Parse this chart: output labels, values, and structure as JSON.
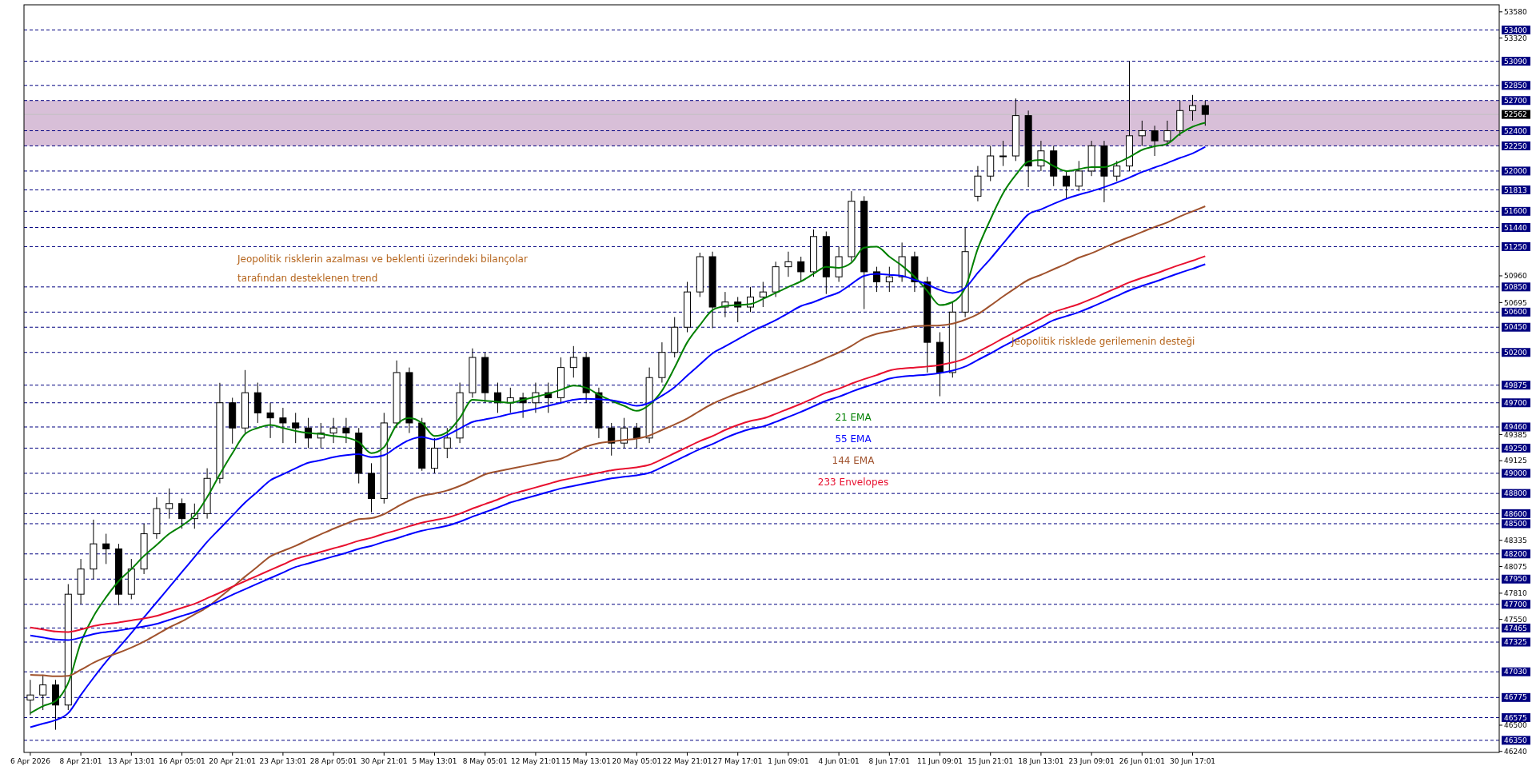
{
  "chart_data": {
    "type": "candlestick",
    "categories": [
      "6 Apr 2026",
      null,
      null,
      null,
      "8 Apr 21:01",
      null,
      null,
      null,
      "13 Apr 13:01",
      null,
      null,
      null,
      "16 Apr 05:01",
      null,
      null,
      null,
      "20 Apr 21:01",
      null,
      null,
      null,
      "23 Apr 13:01",
      null,
      null,
      null,
      "28 Apr 05:01",
      null,
      null,
      null,
      "30 Apr 21:01",
      null,
      null,
      null,
      "5 May 13:01",
      null,
      null,
      null,
      "8 May 05:01",
      null,
      null,
      null,
      "12 May 21:01",
      null,
      null,
      null,
      "15 May 13:01",
      null,
      null,
      null,
      "20 May 05:01",
      null,
      null,
      null,
      "22 May 21:01",
      null,
      null,
      null,
      "27 May 17:01",
      null,
      null,
      null,
      "1 Jun 09:01",
      null,
      null,
      null,
      "4 Jun 01:01",
      null,
      null,
      null,
      "8 Jun 17:01",
      null,
      null,
      null,
      "11 Jun 09:01",
      null,
      null,
      null,
      "15 Jun 21:01",
      null,
      null,
      null,
      "18 Jun 13:01",
      null,
      null,
      null,
      "23 Jun 09:01",
      null,
      null,
      null,
      "26 Jun 01:01",
      null,
      null,
      null,
      "30 Jun 17:01",
      null
    ],
    "ohlc": [
      [
        46750,
        46950,
        46600,
        46800
      ],
      [
        46800,
        47000,
        46650,
        46900
      ],
      [
        46900,
        46950,
        46455,
        46700
      ],
      [
        46700,
        47900,
        46650,
        47800
      ],
      [
        47800,
        48150,
        47700,
        48050
      ],
      [
        48050,
        48540,
        47950,
        48300
      ],
      [
        48300,
        48400,
        48100,
        48250
      ],
      [
        48250,
        48300,
        47690,
        47800
      ],
      [
        47800,
        48150,
        47750,
        48050
      ],
      [
        48050,
        48500,
        48000,
        48400
      ],
      [
        48400,
        48763,
        48350,
        48650
      ],
      [
        48650,
        48850,
        48550,
        48700
      ],
      [
        48700,
        48750,
        48450,
        48550
      ],
      [
        48550,
        48700,
        48450,
        48600
      ],
      [
        48600,
        49050,
        48550,
        48950
      ],
      [
        48950,
        49898,
        48900,
        49700
      ],
      [
        49700,
        49750,
        49295,
        49450
      ],
      [
        49450,
        50025,
        49400,
        49800
      ],
      [
        49800,
        49900,
        49500,
        49600
      ],
      [
        49600,
        49700,
        49350,
        49550
      ],
      [
        49550,
        49650,
        49300,
        49500
      ],
      [
        49500,
        49600,
        49300,
        49450
      ],
      [
        49450,
        49550,
        49250,
        49350
      ],
      [
        49350,
        49500,
        49250,
        49400
      ],
      [
        49400,
        49550,
        49300,
        49450
      ],
      [
        49450,
        49550,
        49300,
        49400
      ],
      [
        49400,
        49450,
        48900,
        49000
      ],
      [
        49000,
        49100,
        48613,
        48750
      ],
      [
        48750,
        49600,
        48700,
        49500
      ],
      [
        49500,
        50120,
        49450,
        50000
      ],
      [
        50000,
        50050,
        49400,
        49500
      ],
      [
        49500,
        49550,
        49025,
        49050
      ],
      [
        49050,
        49350,
        49000,
        49250
      ],
      [
        49250,
        49450,
        49150,
        49350
      ],
      [
        49350,
        49900,
        49300,
        49800
      ],
      [
        49800,
        50240,
        49750,
        50150
      ],
      [
        50150,
        50200,
        49700,
        49800
      ],
      [
        49800,
        49900,
        49600,
        49700
      ],
      [
        49700,
        49850,
        49600,
        49750
      ],
      [
        49750,
        49800,
        49550,
        49700
      ],
      [
        49700,
        49900,
        49600,
        49800
      ],
      [
        49800,
        49900,
        49600,
        49750
      ],
      [
        49750,
        50150,
        49700,
        50050
      ],
      [
        50050,
        50263,
        49950,
        50150
      ],
      [
        50150,
        50200,
        49700,
        49800
      ],
      [
        49800,
        49850,
        49350,
        49450
      ],
      [
        49450,
        49500,
        49176,
        49300
      ],
      [
        49300,
        49550,
        49250,
        49450
      ],
      [
        49450,
        49500,
        49250,
        49350
      ],
      [
        49350,
        50050,
        49300,
        49950
      ],
      [
        49950,
        50300,
        49900,
        50200
      ],
      [
        50200,
        50550,
        50150,
        50450
      ],
      [
        50450,
        50900,
        50400,
        50800
      ],
      [
        50800,
        51190,
        50750,
        51150
      ],
      [
        51150,
        51200,
        50440,
        50650
      ],
      [
        50650,
        50800,
        50550,
        50700
      ],
      [
        50700,
        50750,
        50500,
        50650
      ],
      [
        50650,
        50850,
        50600,
        50750
      ],
      [
        50750,
        50900,
        50650,
        50800
      ],
      [
        50800,
        51100,
        50750,
        51050
      ],
      [
        51050,
        51200,
        50950,
        51100
      ],
      [
        51100,
        51150,
        50900,
        51000
      ],
      [
        51000,
        51420,
        50950,
        51350
      ],
      [
        51350,
        51400,
        50780,
        50950
      ],
      [
        50950,
        51250,
        50900,
        51150
      ],
      [
        51150,
        51800,
        51100,
        51700
      ],
      [
        51700,
        51750,
        50630,
        51000
      ],
      [
        51000,
        51050,
        50800,
        50900
      ],
      [
        50900,
        51050,
        50800,
        50950
      ],
      [
        50950,
        51290,
        50900,
        51150
      ],
      [
        51150,
        51200,
        50800,
        50900
      ],
      [
        50900,
        50950,
        50000,
        50300
      ],
      [
        50300,
        50400,
        49765,
        50000
      ],
      [
        50000,
        50700,
        49950,
        50600
      ],
      [
        50600,
        51440,
        50550,
        51200
      ],
      [
        51750,
        52050,
        51700,
        51950
      ],
      [
        51950,
        52250,
        51900,
        52150
      ],
      [
        52150,
        52300,
        52050,
        52150
      ],
      [
        52150,
        52720,
        52100,
        52550
      ],
      [
        52550,
        52600,
        51840,
        52050
      ],
      [
        52050,
        52300,
        52000,
        52200
      ],
      [
        52200,
        52250,
        51850,
        51950
      ],
      [
        51950,
        52000,
        51720,
        51850
      ],
      [
        51850,
        52100,
        51800,
        52000
      ],
      [
        52000,
        52300,
        51950,
        52250
      ],
      [
        52250,
        52300,
        51690,
        51950
      ],
      [
        51950,
        52100,
        51900,
        52050
      ],
      [
        52050,
        53090,
        52000,
        52350
      ],
      [
        52350,
        52500,
        52250,
        52400
      ],
      [
        52400,
        52450,
        52150,
        52300
      ],
      [
        52300,
        52500,
        52250,
        52400
      ],
      [
        52400,
        52700,
        52350,
        52600
      ],
      [
        52600,
        52755,
        52500,
        52650
      ],
      [
        52650,
        52700,
        52450,
        52562
      ]
    ],
    "series": [
      {
        "type": "line",
        "name": "21 EMA",
        "color": "#008000",
        "values": [
          46620,
          46690,
          46740,
          46920,
          47320,
          47580,
          47770,
          47930,
          48050,
          48180,
          48290,
          48400,
          48480,
          48580,
          48763,
          48990,
          49200,
          49390,
          49450,
          49480,
          49450,
          49420,
          49400,
          49390,
          49370,
          49355,
          49310,
          49200,
          49260,
          49480,
          49550,
          49500,
          49370,
          49410,
          49550,
          49730,
          49720,
          49710,
          49700,
          49730,
          49760,
          49790,
          49830,
          49870,
          49850,
          49780,
          49720,
          49670,
          49620,
          49680,
          49820,
          50050,
          50300,
          50470,
          50620,
          50660,
          50670,
          50680,
          50730,
          50790,
          50850,
          50905,
          50980,
          51050,
          51040,
          51090,
          51240,
          51250,
          51150,
          51060,
          50950,
          50810,
          50670,
          50700,
          50840,
          51230,
          51520,
          51780,
          51960,
          52095,
          52110,
          52050,
          52000,
          52020,
          52040,
          52040,
          52080,
          52140,
          52210,
          52245,
          52270,
          52370,
          52440,
          52480
        ]
      },
      {
        "type": "line",
        "name": "55 EMA",
        "color": "#0000ff",
        "values": [
          46480,
          46515,
          46550,
          46620,
          46800,
          46970,
          47130,
          47270,
          47415,
          47570,
          47720,
          47870,
          48020,
          48170,
          48320,
          48450,
          48580,
          48710,
          48820,
          48930,
          48990,
          49050,
          49105,
          49130,
          49160,
          49180,
          49190,
          49160,
          49180,
          49260,
          49330,
          49360,
          49335,
          49380,
          49445,
          49510,
          49535,
          49560,
          49590,
          49615,
          49640,
          49670,
          49700,
          49730,
          49740,
          49735,
          49725,
          49700,
          49670,
          49700,
          49770,
          49855,
          49970,
          50080,
          50190,
          50260,
          50330,
          50400,
          50460,
          50520,
          50590,
          50660,
          50700,
          50750,
          50795,
          50880,
          50960,
          50980,
          50970,
          50960,
          50920,
          50875,
          50820,
          50790,
          50840,
          50990,
          51130,
          51280,
          51430,
          51570,
          51620,
          51675,
          51725,
          51765,
          51800,
          51840,
          51885,
          51935,
          51990,
          52035,
          52080,
          52130,
          52175,
          52240
        ]
      },
      {
        "type": "line",
        "name": "144 EMA",
        "color": "#a0522d",
        "values": [
          47000,
          46995,
          46985,
          46990,
          47050,
          47120,
          47175,
          47220,
          47270,
          47330,
          47400,
          47470,
          47530,
          47600,
          47670,
          47770,
          47870,
          47975,
          48075,
          48175,
          48230,
          48280,
          48340,
          48395,
          48450,
          48500,
          48545,
          48555,
          48595,
          48665,
          48730,
          48775,
          48800,
          48830,
          48875,
          48930,
          48990,
          49020,
          49045,
          49070,
          49095,
          49120,
          49145,
          49205,
          49265,
          49300,
          49315,
          49330,
          49345,
          49375,
          49430,
          49485,
          49545,
          49620,
          49690,
          49745,
          49795,
          49840,
          49890,
          49940,
          49990,
          50040,
          50090,
          50145,
          50200,
          50265,
          50340,
          50385,
          50410,
          50435,
          50460,
          50465,
          50468,
          50485,
          50525,
          50580,
          50665,
          50755,
          50840,
          50920,
          50970,
          51025,
          51080,
          51140,
          51185,
          51240,
          51295,
          51345,
          51395,
          51445,
          51490,
          51550,
          51600,
          51650
        ]
      },
      {
        "type": "line",
        "name": "233 Envelopes",
        "color": "#e8102f",
        "values": [
          47470,
          47450,
          47430,
          47425,
          47450,
          47485,
          47505,
          47520,
          47540,
          47560,
          47585,
          47625,
          47665,
          47705,
          47760,
          47815,
          47875,
          47930,
          47985,
          48040,
          48095,
          48150,
          48185,
          48220,
          48255,
          48290,
          48330,
          48360,
          48400,
          48435,
          48475,
          48510,
          48535,
          48560,
          48600,
          48650,
          48695,
          48740,
          48790,
          48825,
          48860,
          48895,
          48930,
          48955,
          48980,
          49005,
          49030,
          49045,
          49060,
          49085,
          49140,
          49200,
          49260,
          49320,
          49370,
          49430,
          49480,
          49520,
          49545,
          49590,
          49640,
          49690,
          49745,
          49800,
          49840,
          49890,
          49935,
          49975,
          50020,
          50040,
          50050,
          50060,
          50075,
          50100,
          50140,
          50205,
          50270,
          50340,
          50405,
          50470,
          50535,
          50600,
          50640,
          50680,
          50730,
          50785,
          50840,
          50895,
          50940,
          50980,
          51025,
          51070,
          51110,
          51155
        ]
      },
      {
        "type": "line",
        "color": "#0000ff",
        "values": [
          47390,
          47370,
          47350,
          47345,
          47370,
          47405,
          47425,
          47440,
          47460,
          47480,
          47505,
          47545,
          47585,
          47625,
          47680,
          47735,
          47795,
          47850,
          47905,
          47960,
          48015,
          48070,
          48105,
          48140,
          48175,
          48210,
          48250,
          48280,
          48320,
          48355,
          48395,
          48430,
          48455,
          48480,
          48520,
          48570,
          48615,
          48660,
          48710,
          48745,
          48780,
          48815,
          48850,
          48875,
          48900,
          48925,
          48950,
          48965,
          48980,
          49005,
          49060,
          49120,
          49180,
          49240,
          49290,
          49350,
          49400,
          49440,
          49465,
          49510,
          49560,
          49610,
          49665,
          49720,
          49760,
          49810,
          49855,
          49895,
          49940,
          49960,
          49970,
          49980,
          49995,
          50020,
          50060,
          50125,
          50190,
          50260,
          50325,
          50390,
          50455,
          50520,
          50560,
          50600,
          50650,
          50705,
          50760,
          50815,
          50860,
          50900,
          50945,
          50990,
          51030,
          51075
        ]
      }
    ],
    "ylim": [
      46230,
      53650
    ],
    "yticks": [
      53580,
      53320,
      50960,
      50695,
      49385,
      49125,
      48335,
      48075,
      47810,
      47550,
      46500,
      46240
    ],
    "ref_lines": [
      {
        "axis": "y",
        "value": 52562,
        "label": "52562",
        "color": "#c0c0c0",
        "line_style": "solid"
      },
      {
        "axis": "y",
        "value": 53400,
        "label": "53400",
        "color": "#000080",
        "line_style": "dashed"
      },
      {
        "axis": "y",
        "value": 53090,
        "label": "53090",
        "color": "#000080",
        "line_style": "dashed"
      },
      {
        "axis": "y",
        "value": 52850,
        "label": "52850",
        "color": "#000080",
        "line_style": "dashed"
      },
      {
        "axis": "y",
        "value": 52700,
        "label": "52700",
        "color": "#000080",
        "line_style": "dashed"
      },
      {
        "axis": "y",
        "value": 52400,
        "label": "52400",
        "color": "#000080",
        "line_style": "dashed"
      },
      {
        "axis": "y",
        "value": 52250,
        "label": "52250",
        "color": "#000080",
        "line_style": "dashed"
      },
      {
        "axis": "y",
        "value": 52000,
        "label": "52000",
        "color": "#000080",
        "line_style": "dashed"
      },
      {
        "axis": "y",
        "value": 51813,
        "label": "51813",
        "color": "#000080",
        "line_style": "dashed"
      },
      {
        "axis": "y",
        "value": 51600,
        "label": "51600",
        "color": "#000080",
        "line_style": "dashed"
      },
      {
        "axis": "y",
        "value": 51440,
        "label": "51440",
        "color": "#000080",
        "line_style": "dashed"
      },
      {
        "axis": "y",
        "value": 51250,
        "label": "51250",
        "color": "#000080",
        "line_style": "dashed"
      },
      {
        "axis": "y",
        "value": 50850,
        "label": "50850",
        "color": "#000080",
        "line_style": "dashed"
      },
      {
        "axis": "y",
        "value": 50600,
        "label": "50600",
        "color": "#000080",
        "line_style": "dashed"
      },
      {
        "axis": "y",
        "value": 50450,
        "label": "50450",
        "color": "#000080",
        "line_style": "dashed"
      },
      {
        "axis": "y",
        "value": 50200,
        "label": "50200",
        "color": "#000080",
        "line_style": "dashed"
      },
      {
        "axis": "y",
        "value": 49875,
        "label": "49875",
        "color": "#000080",
        "line_style": "dashed"
      },
      {
        "axis": "y",
        "value": 49700,
        "label": "49700",
        "color": "#000080",
        "line_style": "dashed"
      },
      {
        "axis": "y",
        "value": 49460,
        "label": "49460",
        "color": "#000080",
        "line_style": "dashed"
      },
      {
        "axis": "y",
        "value": 49250,
        "label": "49250",
        "color": "#000080",
        "line_style": "dashed"
      },
      {
        "axis": "y",
        "value": 49000,
        "label": "49000",
        "color": "#000080",
        "line_style": "dashed"
      },
      {
        "axis": "y",
        "value": 48800,
        "label": "48800",
        "color": "#000080",
        "line_style": "dashed"
      },
      {
        "axis": "y",
        "value": 48600,
        "label": "48600",
        "color": "#000080",
        "line_style": "dashed"
      },
      {
        "axis": "y",
        "value": 48500,
        "label": "48500",
        "color": "#000080",
        "line_style": "dashed"
      },
      {
        "axis": "y",
        "value": 48200,
        "label": "48200",
        "color": "#000080",
        "line_style": "dashed"
      },
      {
        "axis": "y",
        "value": 47950,
        "label": "47950",
        "color": "#000080",
        "line_style": "dashed"
      },
      {
        "axis": "y",
        "value": 47700,
        "label": "47700",
        "color": "#000080",
        "line_style": "dashed"
      },
      {
        "axis": "y",
        "value": 47465,
        "label": "47465",
        "color": "#000080",
        "line_style": "dashed"
      },
      {
        "axis": "y",
        "value": 47325,
        "label": "47325",
        "color": "#000080",
        "line_style": "dashed"
      },
      {
        "axis": "y",
        "value": 47030,
        "label": "47030",
        "color": "#000080",
        "line_style": "dashed"
      },
      {
        "axis": "y",
        "value": 46775,
        "label": "46775",
        "color": "#000080",
        "line_style": "dashed"
      },
      {
        "axis": "y",
        "value": 46575,
        "label": "46575",
        "color": "#000080",
        "line_style": "dashed"
      },
      {
        "axis": "y",
        "value": 46350,
        "label": "46350",
        "color": "#000080",
        "line_style": "dashed"
      }
    ],
    "bands": [
      {
        "axis": "y",
        "from": 52250,
        "to": 52700,
        "color": "#d8bfd8"
      }
    ],
    "annotations": [
      "Jeopolitik risklerin azalması ve beklenti üzerindeki bilançolar",
      "tarafından desteklenen trend",
      "Jeopolitik risklede gerilemenin desteği"
    ],
    "legend": "center"
  }
}
